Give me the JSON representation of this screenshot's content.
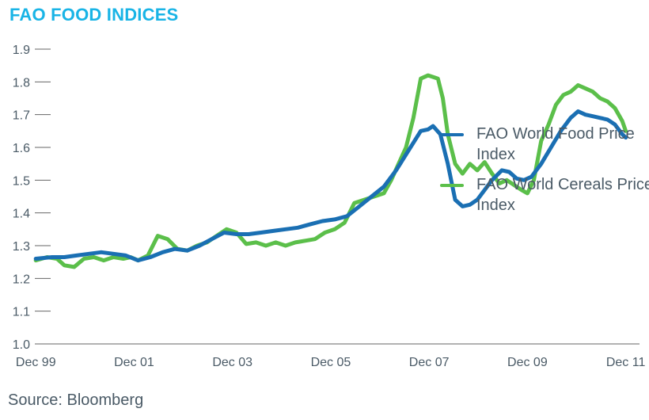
{
  "colors": {
    "title": "#19b4e6",
    "food": "#1a6fb3",
    "cereals": "#5bbf4a",
    "text": "#4a5a66",
    "axis": "#666666"
  },
  "title": "FAO FOOD INDICES",
  "source": "Source: Bloomberg",
  "chart_data": {
    "type": "line",
    "title": "FAO FOOD INDICES",
    "ylim": [
      1.0,
      1.9
    ],
    "yticks": [
      "1.9",
      "1.8",
      "1.7",
      "1.6",
      "1.5",
      "1.4",
      "1.3",
      "1.2",
      "1.1",
      "1.0"
    ],
    "xlim": [
      1999.9,
      2012.2
    ],
    "xticks": [
      "Dec 99",
      "Dec 01",
      "Dec 03",
      "Dec 05",
      "Dec 07",
      "Dec 09",
      "Dec 11"
    ],
    "xtick_values": [
      1999.92,
      2001.92,
      2003.92,
      2005.92,
      2007.92,
      2009.92,
      2011.92
    ],
    "grid": false,
    "legend_position": "right",
    "series": [
      {
        "name": "FAO World Food Price Index",
        "color": "#1a6fb3",
        "x": [
          1999.92,
          2000.25,
          2000.5,
          2000.75,
          2001.0,
          2001.25,
          2001.5,
          2001.75,
          2002.0,
          2002.25,
          2002.5,
          2002.75,
          2003.0,
          2003.25,
          2003.5,
          2003.75,
          2004.0,
          2004.25,
          2004.5,
          2004.75,
          2005.0,
          2005.25,
          2005.5,
          2005.75,
          2006.0,
          2006.25,
          2006.5,
          2006.75,
          2007.0,
          2007.25,
          2007.5,
          2007.75,
          2007.9,
          2008.0,
          2008.15,
          2008.3,
          2008.45,
          2008.6,
          2008.75,
          2008.9,
          2009.05,
          2009.2,
          2009.4,
          2009.55,
          2009.7,
          2009.85,
          2010.0,
          2010.2,
          2010.4,
          2010.6,
          2010.8,
          2010.95,
          2011.1,
          2011.25,
          2011.4,
          2011.55,
          2011.7,
          2011.85,
          2011.92
        ],
        "y": [
          1.26,
          1.265,
          1.265,
          1.27,
          1.275,
          1.28,
          1.275,
          1.27,
          1.255,
          1.265,
          1.28,
          1.29,
          1.285,
          1.3,
          1.32,
          1.34,
          1.335,
          1.335,
          1.34,
          1.345,
          1.35,
          1.355,
          1.365,
          1.375,
          1.38,
          1.39,
          1.42,
          1.45,
          1.48,
          1.53,
          1.59,
          1.65,
          1.655,
          1.665,
          1.64,
          1.55,
          1.44,
          1.42,
          1.425,
          1.44,
          1.47,
          1.5,
          1.53,
          1.525,
          1.505,
          1.5,
          1.51,
          1.55,
          1.6,
          1.65,
          1.69,
          1.71,
          1.7,
          1.695,
          1.69,
          1.685,
          1.67,
          1.64,
          1.63
        ]
      },
      {
        "name": "FAO World Cereals Price Index",
        "color": "#5bbf4a",
        "x": [
          1999.92,
          2000.15,
          2000.35,
          2000.5,
          2000.7,
          2000.9,
          2001.1,
          2001.3,
          2001.5,
          2001.7,
          2001.85,
          2002.0,
          2002.2,
          2002.4,
          2002.6,
          2002.8,
          2003.0,
          2003.2,
          2003.4,
          2003.6,
          2003.8,
          2004.0,
          2004.2,
          2004.4,
          2004.6,
          2004.8,
          2005.0,
          2005.2,
          2005.4,
          2005.6,
          2005.8,
          2006.0,
          2006.2,
          2006.4,
          2006.6,
          2006.8,
          2007.0,
          2007.15,
          2007.3,
          2007.45,
          2007.6,
          2007.75,
          2007.9,
          2008.0,
          2008.1,
          2008.2,
          2008.3,
          2008.45,
          2008.6,
          2008.75,
          2008.9,
          2009.05,
          2009.2,
          2009.35,
          2009.5,
          2009.65,
          2009.8,
          2009.92,
          2010.05,
          2010.2,
          2010.35,
          2010.5,
          2010.65,
          2010.8,
          2010.95,
          2011.1,
          2011.25,
          2011.4,
          2011.55,
          2011.7,
          2011.85,
          2011.92
        ],
        "y": [
          1.255,
          1.265,
          1.26,
          1.24,
          1.235,
          1.26,
          1.265,
          1.255,
          1.265,
          1.26,
          1.265,
          1.255,
          1.27,
          1.33,
          1.32,
          1.29,
          1.285,
          1.3,
          1.31,
          1.33,
          1.35,
          1.34,
          1.305,
          1.31,
          1.3,
          1.31,
          1.3,
          1.31,
          1.315,
          1.32,
          1.34,
          1.35,
          1.37,
          1.43,
          1.44,
          1.45,
          1.46,
          1.5,
          1.55,
          1.6,
          1.69,
          1.81,
          1.82,
          1.815,
          1.81,
          1.75,
          1.64,
          1.55,
          1.52,
          1.55,
          1.53,
          1.555,
          1.52,
          1.49,
          1.5,
          1.485,
          1.47,
          1.46,
          1.5,
          1.62,
          1.67,
          1.73,
          1.76,
          1.77,
          1.79,
          1.78,
          1.77,
          1.75,
          1.74,
          1.72,
          1.68,
          1.65
        ]
      }
    ]
  },
  "legend": [
    {
      "label": "FAO World Food Price Index",
      "color": "#1a6fb3"
    },
    {
      "label": "FAO World Cereals Price Index",
      "color": "#5bbf4a"
    }
  ]
}
